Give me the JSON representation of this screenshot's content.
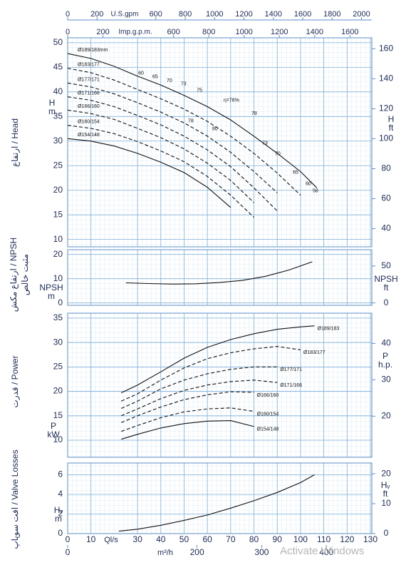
{
  "chart_data": [
    {
      "type": "line",
      "title": "ارتفاع / Head",
      "ylabel": "H",
      "yunit": "m",
      "y2label": "H",
      "y2unit": "ft",
      "top_axes": [
        {
          "label": "U.S.gpm",
          "xlim": [
            0,
            2060.5
          ],
          "xticks": [
            0,
            200,
            600,
            800,
            1000,
            1200,
            1400,
            1600,
            1800,
            2000
          ]
        },
        {
          "label": "Imp.g.p.m.",
          "xlim": [
            0,
            1715.8
          ],
          "xticks": [
            0,
            200,
            600,
            800,
            1000,
            1200,
            1400,
            1600
          ]
        }
      ],
      "x": [
        0,
        10,
        20,
        30,
        40,
        50,
        60,
        70,
        80,
        90,
        100,
        107
      ],
      "series_label_at": "start",
      "series": [
        {
          "name": "Ø189/183mm",
          "color": "#111111",
          "line_style": "solid",
          "values": [
            47.8,
            46.8,
            45.2,
            43.2,
            41.4,
            39.3,
            37.0,
            34.3,
            31.0,
            27.5,
            23.8,
            20.5
          ]
        },
        {
          "name": "Ø183/177",
          "color": "#111111",
          "line_style": "dashed",
          "values": [
            44.8,
            43.9,
            42.4,
            40.5,
            38.6,
            36.5,
            34.0,
            31.0,
            27.5,
            23.5,
            19.0,
            null
          ]
        },
        {
          "name": "Ø177/171",
          "color": "#111111",
          "line_style": "dashed",
          "values": [
            41.8,
            41.0,
            39.6,
            37.8,
            35.9,
            33.7,
            31.0,
            27.7,
            23.8,
            19.5,
            null,
            null
          ]
        },
        {
          "name": "Ø171/166",
          "color": "#111111",
          "line_style": "dashed",
          "values": [
            39.0,
            38.3,
            37.0,
            35.2,
            33.3,
            31.0,
            28.2,
            24.8,
            20.5,
            15.8,
            null,
            null
          ]
        },
        {
          "name": "Ø166/160",
          "color": "#111111",
          "line_style": "dashed",
          "values": [
            36.3,
            35.6,
            34.4,
            32.6,
            30.7,
            28.4,
            25.5,
            22.0,
            17.5,
            null,
            null,
            null
          ]
        },
        {
          "name": "Ø160/154",
          "color": "#111111",
          "line_style": "dashed",
          "values": [
            33.2,
            32.6,
            31.5,
            29.9,
            28.0,
            25.8,
            22.8,
            19.0,
            14.5,
            null,
            null,
            null
          ]
        },
        {
          "name": "Ø154/148",
          "color": "#111111",
          "line_style": "solid",
          "values": [
            30.5,
            30.0,
            29.0,
            27.5,
            25.7,
            23.6,
            20.6,
            16.5,
            null,
            null,
            null,
            null
          ]
        }
      ],
      "annotations": [
        {
          "label": "60",
          "x": 31.5,
          "y": 43.8
        },
        {
          "label": "65",
          "x": 37.6,
          "y": 43.1
        },
        {
          "label": "70",
          "x": 43.7,
          "y": 42.3
        },
        {
          "label": "73",
          "x": 49.8,
          "y": 41.6
        },
        {
          "label": "75",
          "x": 56.6,
          "y": 40.3
        },
        {
          "label": "η=78%",
          "x": 70.3,
          "y": 38.3
        },
        {
          "label": "78",
          "x": 52.9,
          "y": 34.1
        },
        {
          "label": "80",
          "x": 63.3,
          "y": 32.5
        },
        {
          "label": "78",
          "x": 80.1,
          "y": 35.6
        },
        {
          "label": "73",
          "x": 84.7,
          "y": 29.6
        },
        {
          "label": "70",
          "x": 90.2,
          "y": 27.4
        },
        {
          "label": "65",
          "x": 97.9,
          "y": 23.6
        },
        {
          "label": "60",
          "x": 103.4,
          "y": 21.3
        },
        {
          "label": "58",
          "x": 106.4,
          "y": 19.9
        }
      ],
      "ylim": [
        8.5,
        51
      ],
      "yticks": [
        10,
        15,
        20,
        25,
        30,
        35,
        40,
        45,
        50
      ],
      "y2lim": [
        27.9,
        167.3
      ],
      "y2ticks": [
        40,
        60,
        80,
        100,
        120,
        140,
        160
      ],
      "grid": true
    },
    {
      "type": "line",
      "title": [
        "ارتفاع مکش / NPSH",
        "مثبت خالص"
      ],
      "ylabel": "NPSH",
      "yunit": "m",
      "y2label": "NPSH",
      "y2unit": "ft",
      "x": [
        25,
        35,
        45,
        55,
        65,
        75,
        85,
        95,
        105
      ],
      "series": [
        {
          "color": "#111111",
          "line_style": "solid",
          "values": [
            8.3,
            8.0,
            7.8,
            7.9,
            8.4,
            9.3,
            11.0,
            13.6,
            17.0
          ]
        }
      ],
      "ylim": [
        -1,
        22
      ],
      "yticks": [
        0,
        10,
        20
      ],
      "y2lim": [
        -3.3,
        72.2
      ],
      "y2ticks": [
        0,
        50
      ],
      "grid": true
    },
    {
      "type": "line",
      "title": "قدرت / Power",
      "ylabel": "P",
      "yunit": "kW",
      "y2label": "P",
      "y2unit": "h.p.",
      "x": [
        23,
        30,
        40,
        50,
        60,
        70,
        80,
        90,
        100,
        106
      ],
      "series_label_at": "end",
      "series": [
        {
          "name": "Ø189/183",
          "color": "#111111",
          "line_style": "solid",
          "values": [
            19.7,
            21.3,
            24.0,
            26.8,
            29.0,
            30.6,
            31.8,
            32.7,
            33.2,
            33.4
          ]
        },
        {
          "name": "Ø183/177",
          "color": "#111111",
          "line_style": "dashed",
          "values": [
            18.0,
            19.5,
            22.3,
            24.8,
            26.7,
            27.9,
            28.7,
            29.2,
            28.5,
            null
          ]
        },
        {
          "name": "Ø177/171",
          "color": "#111111",
          "line_style": "dashed",
          "values": [
            16.5,
            18.0,
            20.5,
            22.3,
            23.6,
            24.5,
            25.0,
            25.0,
            null,
            null
          ]
        },
        {
          "name": "Ø171/166",
          "color": "#111111",
          "line_style": "dashed",
          "values": [
            15.0,
            16.4,
            18.5,
            20.2,
            21.3,
            22.0,
            22.3,
            21.8,
            null,
            null
          ]
        },
        {
          "name": "Ø166/160",
          "color": "#111111",
          "line_style": "dashed",
          "values": [
            13.6,
            15.0,
            16.8,
            18.3,
            19.3,
            19.9,
            19.8,
            null,
            null,
            null
          ]
        },
        {
          "name": "Ø160/154",
          "color": "#111111",
          "line_style": "dashed",
          "values": [
            11.8,
            13.0,
            14.6,
            15.8,
            16.4,
            16.6,
            15.9,
            null,
            null,
            null
          ]
        },
        {
          "name": "Ø154/148",
          "color": "#111111",
          "line_style": "solid",
          "values": [
            10.2,
            11.2,
            12.5,
            13.4,
            13.9,
            14.0,
            12.8,
            null,
            null,
            null
          ]
        }
      ],
      "ylim": [
        6.5,
        36
      ],
      "yticks": [
        10,
        15,
        20,
        25,
        30,
        35
      ],
      "y2lim": [
        8.7,
        48.3
      ],
      "y2ticks": [
        20,
        30,
        40
      ],
      "grid": true
    },
    {
      "type": "line",
      "title": "افت سوپاپ / Valve Losses",
      "ylabel": "Hᵥ",
      "yunit": "m",
      "y2label": "Hᵥ",
      "y2unit": "ft",
      "bottom_axes": [
        {
          "label": "Ql/s",
          "xlim": [
            0,
            130
          ],
          "xticks": [
            0,
            10,
            30,
            40,
            50,
            60,
            70,
            80,
            90,
            100,
            110,
            120,
            130
          ]
        },
        {
          "label": "m³/h",
          "xlim": [
            0,
            468
          ],
          "xticks": [
            0,
            200,
            300,
            400
          ]
        }
      ],
      "x": [
        22,
        30,
        40,
        50,
        60,
        70,
        80,
        90,
        100,
        106
      ],
      "series": [
        {
          "color": "#111111",
          "line_style": "solid",
          "values": [
            0.25,
            0.45,
            0.85,
            1.35,
            1.9,
            2.6,
            3.35,
            4.2,
            5.2,
            6.0
          ]
        }
      ],
      "ylim": [
        0,
        7.2
      ],
      "yticks": [
        0,
        2,
        4,
        6
      ],
      "y2lim": [
        0,
        23.6
      ],
      "y2ticks": [
        0,
        10,
        20
      ],
      "grid": true
    }
  ],
  "watermark": "Activate Windows"
}
